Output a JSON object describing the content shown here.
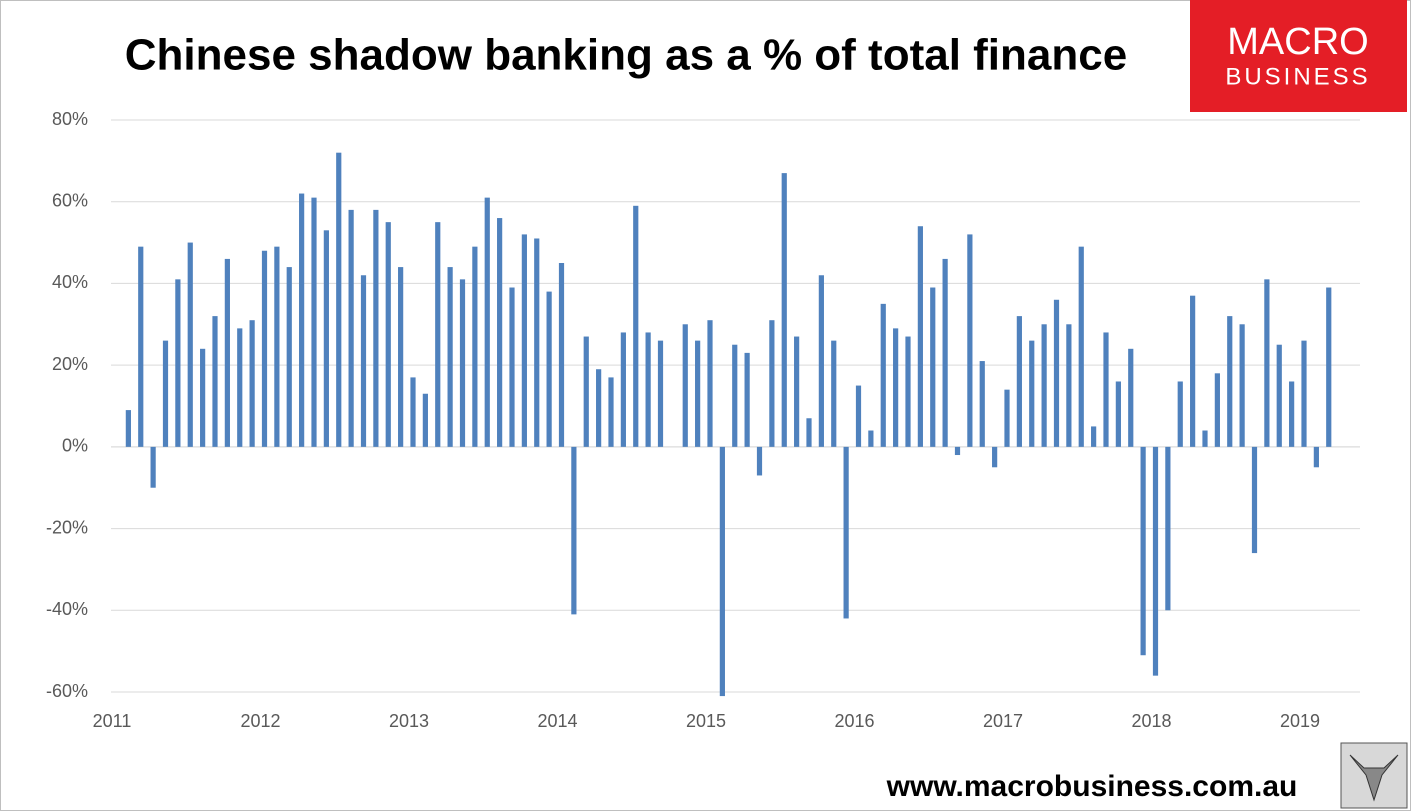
{
  "chart_data": {
    "type": "bar",
    "title": "Chinese shadow banking as a % of total finance",
    "logo": [
      "MACRO",
      "BUSINESS"
    ],
    "source": "www.macrobusiness.com.au",
    "color": "#4f81bd",
    "grid": true,
    "categories": [
      "2011",
      null,
      null,
      null,
      null,
      null,
      null,
      null,
      null,
      null,
      null,
      null,
      "2012",
      null,
      null,
      null,
      null,
      null,
      null,
      null,
      null,
      null,
      null,
      null,
      "2013",
      null,
      null,
      null,
      null,
      null,
      null,
      null,
      null,
      null,
      null,
      null,
      "2014",
      null,
      null,
      null,
      null,
      null,
      null,
      null,
      null,
      null,
      null,
      null,
      "2015",
      null,
      null,
      null,
      null,
      null,
      null,
      null,
      null,
      null,
      null,
      null,
      "2016",
      null,
      null,
      null,
      null,
      null,
      null,
      null,
      null,
      null,
      null,
      null,
      "2017",
      null,
      null,
      null,
      null,
      null,
      null,
      null,
      null,
      null,
      null,
      null,
      "2018",
      null,
      null,
      null,
      null,
      null,
      null,
      null,
      null,
      null,
      null,
      null,
      "2019",
      null,
      null
    ],
    "values": [
      null,
      9,
      49,
      -10,
      26,
      41,
      50,
      24,
      32,
      46,
      29,
      31,
      48,
      49,
      44,
      62,
      61,
      53,
      72,
      58,
      42,
      58,
      55,
      44,
      17,
      13,
      55,
      44,
      41,
      49,
      61,
      56,
      39,
      52,
      51,
      38,
      45,
      -41,
      27,
      19,
      17,
      28,
      59,
      28,
      26,
      null,
      30,
      26,
      31,
      -61,
      25,
      23,
      -7,
      31,
      67,
      27,
      7,
      42,
      26,
      -42,
      15,
      4,
      35,
      29,
      27,
      54,
      39,
      46,
      -2,
      52,
      21,
      -5,
      14,
      32,
      26,
      30,
      36,
      30,
      49,
      5,
      28,
      16,
      24,
      -51,
      -56,
      -40,
      16,
      37,
      4,
      18,
      32,
      30,
      -26,
      41,
      25,
      16,
      26,
      -5,
      39
    ],
    "ylim": [
      -60,
      80
    ],
    "yticks": [
      {
        "value": -60,
        "label": "-60%"
      },
      {
        "value": -40,
        "label": "-40%"
      },
      {
        "value": -20,
        "label": "-20%"
      },
      {
        "value": 0,
        "label": "0%"
      },
      {
        "value": 20,
        "label": "20%"
      },
      {
        "value": 40,
        "label": "40%"
      },
      {
        "value": 60,
        "label": "60%"
      },
      {
        "value": 80,
        "label": "80%"
      }
    ]
  }
}
